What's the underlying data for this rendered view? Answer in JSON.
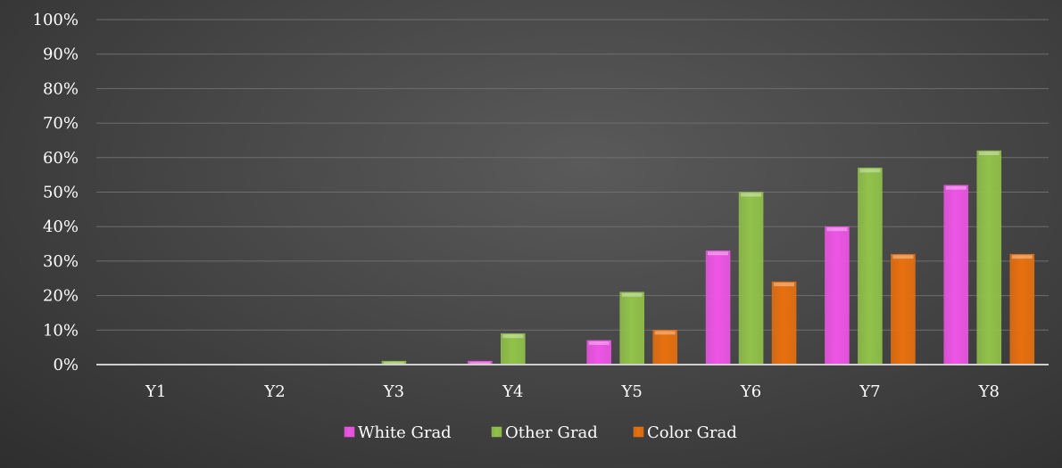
{
  "chart_data": {
    "type": "bar",
    "categories": [
      "Y1",
      "Y2",
      "Y3",
      "Y4",
      "Y5",
      "Y6",
      "Y7",
      "Y8"
    ],
    "series": [
      {
        "name": "White Grad",
        "color": "#ee55e6",
        "values": [
          0,
          0,
          0,
          1,
          7,
          33,
          40,
          52
        ]
      },
      {
        "name": "Other Grad",
        "color": "#92c24a",
        "values": [
          0,
          0,
          1,
          9,
          21,
          50,
          57,
          62
        ]
      },
      {
        "name": "Color Grad",
        "color": "#e8700e",
        "values": [
          0,
          0,
          0,
          0,
          10,
          24,
          32,
          32
        ]
      }
    ],
    "ylim": [
      0,
      100
    ],
    "yticks": [
      "0%",
      "10%",
      "20%",
      "30%",
      "40%",
      "50%",
      "60%",
      "70%",
      "80%",
      "90%",
      "100%"
    ],
    "grid": true,
    "legend": "bottom"
  }
}
